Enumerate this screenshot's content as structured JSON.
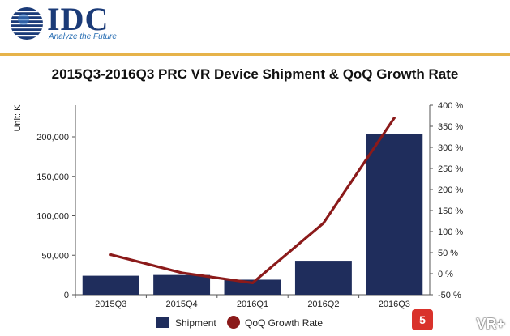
{
  "brand": {
    "name": "IDC",
    "tagline": "Analyze the Future",
    "colors": {
      "navy": "#1b3b78",
      "accent": "#e6b34a"
    }
  },
  "watermark": {
    "badge": "5",
    "text": "VR+"
  },
  "chart_data": {
    "type": "bar",
    "title": "2015Q3-2016Q3 PRC VR Device Shipment & QoQ Growth Rate",
    "ylabel": "Unit: K",
    "xlabel": "",
    "categories": [
      "2015Q3",
      "2015Q4",
      "2016Q1",
      "2016Q2",
      "2016Q3"
    ],
    "ylim": [
      0,
      240000
    ],
    "y_ticks": [
      0,
      50000,
      100000,
      150000,
      200000
    ],
    "y_tick_labels": [
      "0",
      "50,000",
      "100,000",
      "150,000",
      "200,000"
    ],
    "y2lim": [
      -50,
      400
    ],
    "y2_ticks": [
      -50,
      0,
      50,
      100,
      150,
      200,
      250,
      300,
      350,
      400
    ],
    "y2_tick_labels": [
      "-50 %",
      "0 %",
      "50 %",
      "100 %",
      "150 %",
      "200 %",
      "250 %",
      "300 %",
      "350 %",
      "400 %"
    ],
    "grid": false,
    "legend_position": "bottom",
    "series": [
      {
        "name": "Shipment",
        "type": "bar",
        "axis": "left",
        "color": "#1f2d5c",
        "values": [
          24000,
          25000,
          19000,
          43000,
          204000
        ]
      },
      {
        "name": "QoQ Growth Rate",
        "type": "line",
        "axis": "right",
        "color": "#8b1a1a",
        "values": [
          45,
          2,
          -22,
          120,
          370
        ]
      }
    ]
  }
}
